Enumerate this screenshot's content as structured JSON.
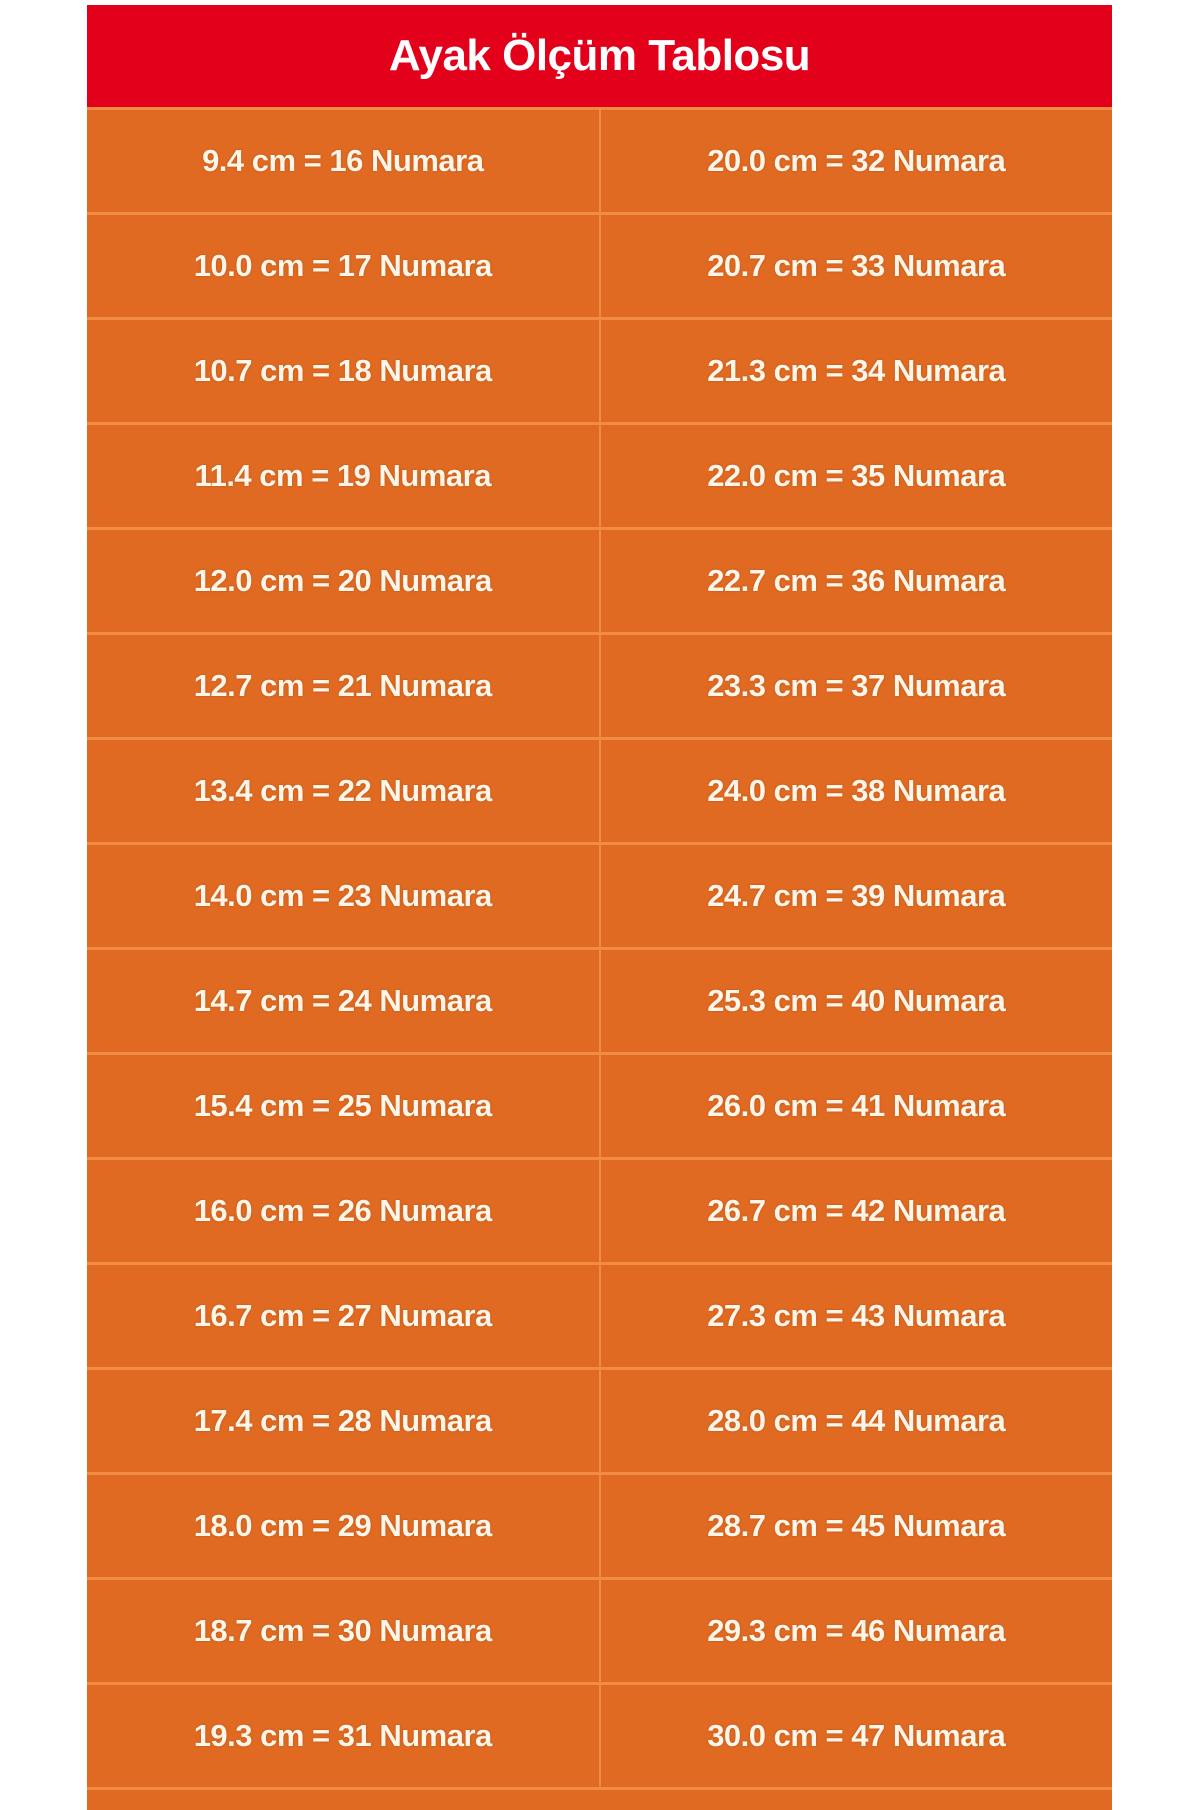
{
  "title": "Ayak Ölçüm Tablosu",
  "colors": {
    "header": "#e2001a",
    "body": "#e06a22",
    "text": "#fff5e8"
  },
  "rows": [
    [
      "9.4 cm = 16 Numara",
      "20.0 cm = 32 Numara"
    ],
    [
      "10.0 cm = 17 Numara",
      "20.7 cm = 33 Numara"
    ],
    [
      "10.7 cm = 18 Numara",
      "21.3 cm = 34 Numara"
    ],
    [
      "11.4 cm = 19 Numara",
      "22.0 cm = 35 Numara"
    ],
    [
      "12.0 cm = 20 Numara",
      "22.7 cm = 36 Numara"
    ],
    [
      "12.7 cm = 21 Numara",
      "23.3 cm = 37 Numara"
    ],
    [
      "13.4 cm = 22 Numara",
      "24.0 cm = 38 Numara"
    ],
    [
      "14.0 cm = 23 Numara",
      "24.7 cm = 39 Numara"
    ],
    [
      "14.7 cm = 24 Numara",
      "25.3 cm = 40 Numara"
    ],
    [
      "15.4 cm = 25 Numara",
      "26.0 cm = 41 Numara"
    ],
    [
      "16.0 cm = 26 Numara",
      "26.7 cm = 42 Numara"
    ],
    [
      "16.7 cm = 27 Numara",
      "27.3 cm = 43 Numara"
    ],
    [
      "17.4 cm = 28 Numara",
      "28.0 cm = 44 Numara"
    ],
    [
      "18.0 cm = 29 Numara",
      "28.7 cm = 45 Numara"
    ],
    [
      "18.7 cm = 30 Numara",
      "29.3 cm = 46 Numara"
    ],
    [
      "19.3 cm = 31 Numara",
      "30.0 cm = 47 Numara"
    ]
  ]
}
